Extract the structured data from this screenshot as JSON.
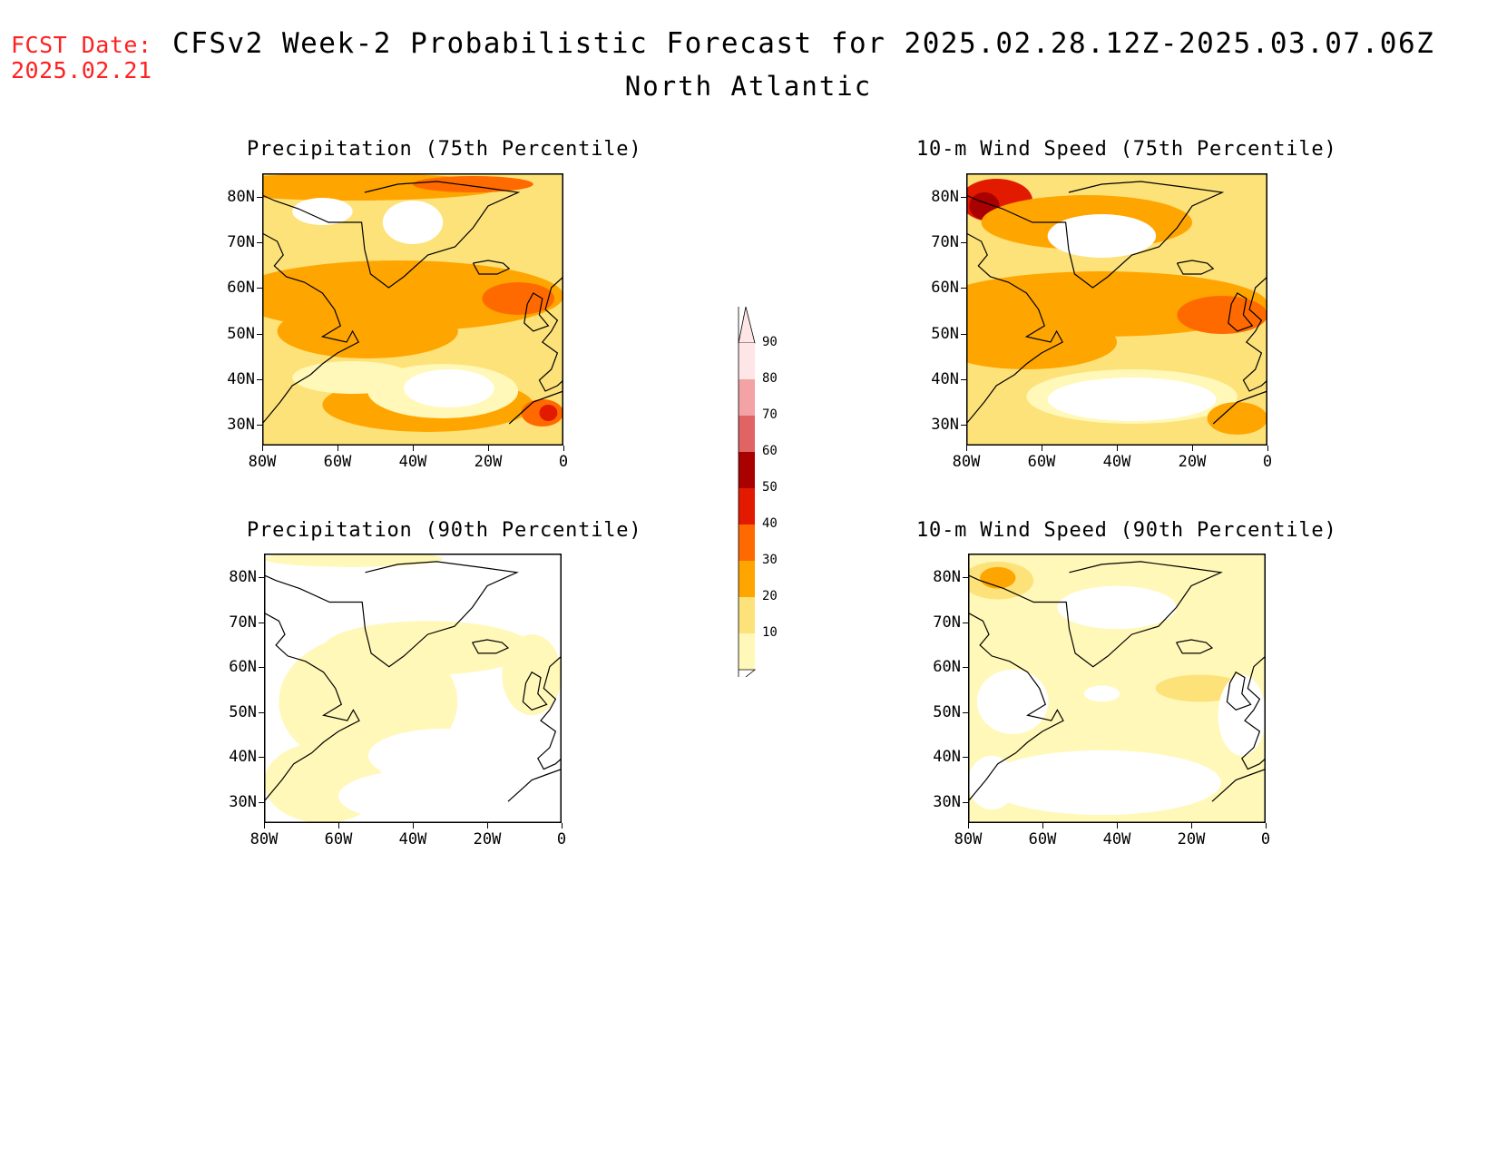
{
  "header": {
    "fcst_label": "FCST Date:",
    "fcst_date": "2025.02.21",
    "title": "CFSv2 Week-2 Probabilistic Forecast for 2025.02.28.12Z-2025.03.07.06Z",
    "subtitle": "North Atlantic"
  },
  "axes": {
    "lat_labels": [
      "80N",
      "70N",
      "60N",
      "50N",
      "40N",
      "30N"
    ],
    "lon_labels": [
      "80W",
      "60W",
      "40W",
      "20W",
      "0"
    ]
  },
  "panels": [
    {
      "id": "precip75",
      "title": "Precipitation (75th Percentile)",
      "intensity": "high"
    },
    {
      "id": "wind75",
      "title": "10-m Wind Speed (75th Percentile)",
      "intensity": "high"
    },
    {
      "id": "precip90",
      "title": "Precipitation (90th Percentile)",
      "intensity": "low"
    },
    {
      "id": "wind90",
      "title": "10-m Wind Speed (90th Percentile)",
      "intensity": "low"
    }
  ],
  "colorbar": {
    "labels": [
      "90",
      "80",
      "70",
      "60",
      "50",
      "40",
      "30",
      "20",
      "10"
    ],
    "colors": [
      "#ffe6e6",
      "#f3a3a3",
      "#e06464",
      "#a90000",
      "#e11a00",
      "#ff6a00",
      "#ffa500",
      "#fde27a",
      "#fff8b8"
    ]
  }
}
